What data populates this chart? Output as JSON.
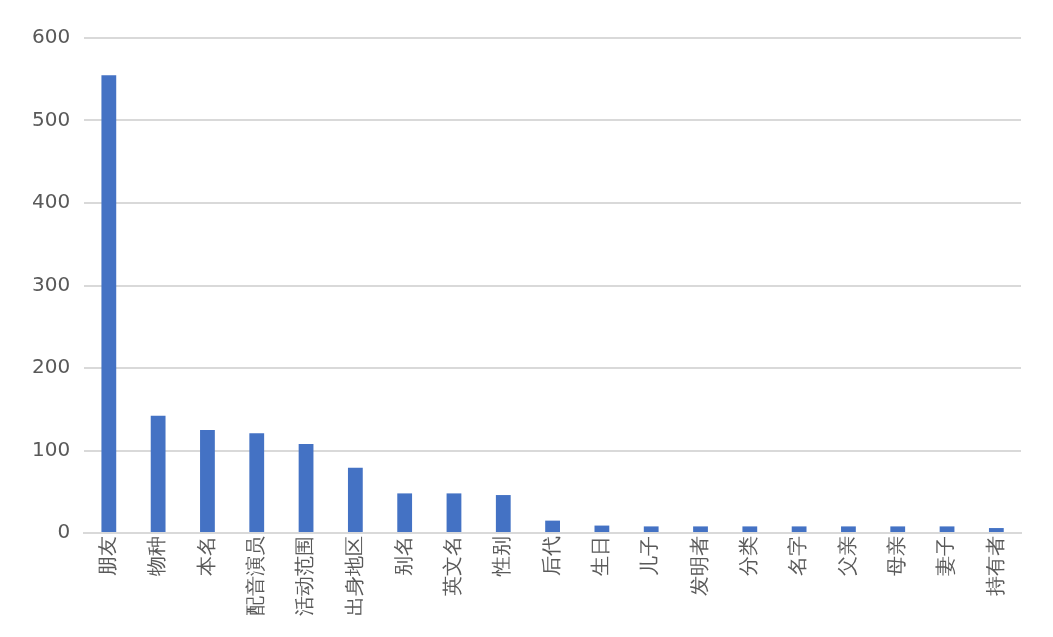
{
  "chart_data": {
    "type": "bar",
    "categories": [
      "朋友",
      "物种",
      "本名",
      "配音演员",
      "活动范围",
      "出身地区",
      "别名",
      "英文名",
      "性别",
      "后代",
      "生日",
      "儿子",
      "发明者",
      "分类",
      "名字",
      "父亲",
      "母亲",
      "妻子",
      "持有者"
    ],
    "values": [
      555,
      142,
      125,
      121,
      108,
      79,
      48,
      48,
      46,
      15,
      9,
      8,
      8,
      8,
      8,
      8,
      8,
      8,
      6
    ],
    "color": "#4472c4",
    "ylim": [
      0,
      600
    ],
    "yticks": [
      0,
      100,
      200,
      300,
      400,
      500,
      600
    ],
    "grid": "y",
    "legend": false
  }
}
